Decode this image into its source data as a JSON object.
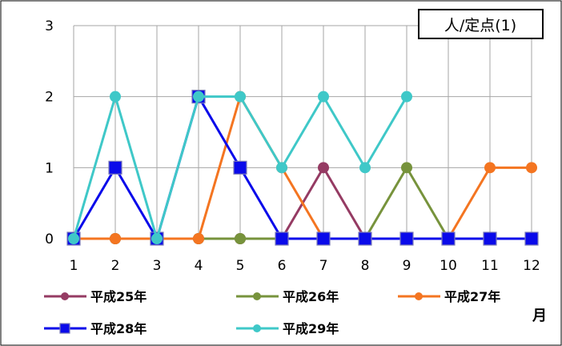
{
  "chart_data": {
    "type": "line",
    "title": "",
    "xlabel": "月",
    "ylabel": "",
    "unit_label": "人/定点(1)",
    "x": [
      1,
      2,
      3,
      4,
      5,
      6,
      7,
      8,
      9,
      10,
      11,
      12
    ],
    "xtick_labels": [
      "1",
      "2",
      "3",
      "4",
      "5",
      "6",
      "7",
      "8",
      "9",
      "10",
      "11",
      "12"
    ],
    "ylim": [
      0,
      3
    ],
    "yticks": [
      0,
      1,
      2,
      3
    ],
    "ytick_labels": [
      "0",
      "1",
      "2",
      "3"
    ],
    "grid": true,
    "legend_position": "bottom",
    "series": [
      {
        "name": "平成25年",
        "color": "#953B63",
        "marker": "circle",
        "values": [
          0,
          0,
          0,
          0,
          0,
          0,
          1,
          0,
          null,
          null,
          null,
          null
        ]
      },
      {
        "name": "平成26年",
        "color": "#77933C",
        "marker": "circle",
        "values": [
          0,
          0,
          0,
          0,
          0,
          0,
          0,
          0,
          1,
          0,
          null,
          null
        ]
      },
      {
        "name": "平成27年",
        "color": "#F47521",
        "marker": "circle",
        "values": [
          0,
          0,
          0,
          0,
          2,
          1,
          0,
          0,
          0,
          0,
          1,
          1
        ]
      },
      {
        "name": "平成28年",
        "color": "#0A0AEA",
        "marker": "square",
        "values": [
          0,
          1,
          0,
          2,
          1,
          0,
          0,
          0,
          0,
          0,
          0,
          0
        ]
      },
      {
        "name": "平成29年",
        "color": "#3FC8C8",
        "marker": "circle",
        "values": [
          0,
          2,
          0,
          2,
          2,
          1,
          2,
          1,
          2,
          null,
          null,
          null
        ]
      }
    ]
  }
}
